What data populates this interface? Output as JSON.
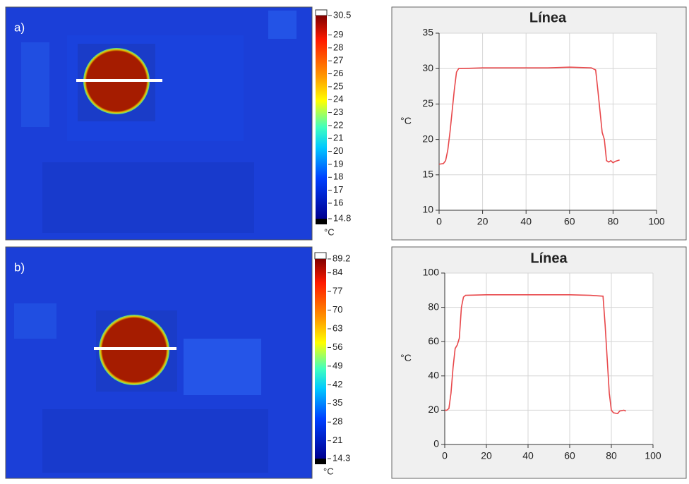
{
  "images": [
    {
      "label": "a)",
      "colorbar": {
        "lim": [
          14.8,
          30.5
        ],
        "ticks": [
          30.5,
          29,
          28,
          27,
          26,
          25,
          24,
          23,
          22,
          21,
          20,
          19,
          18,
          17,
          16,
          14.8
        ],
        "unit": "°C"
      }
    },
    {
      "label": "b)",
      "colorbar": {
        "lim": [
          14.3,
          89.2
        ],
        "ticks": [
          89.2,
          84,
          77,
          70,
          63,
          56,
          49,
          42,
          35,
          28,
          21,
          14.3
        ],
        "unit": "°C"
      }
    }
  ],
  "chart_data": [
    {
      "type": "line",
      "title": "Línea",
      "y_label": "°C",
      "color": "#e8474a",
      "grid": true,
      "x": [
        0,
        2,
        3,
        4,
        5,
        6,
        7,
        8,
        9,
        10,
        20,
        30,
        40,
        50,
        60,
        70,
        72,
        73,
        74,
        75,
        76,
        77,
        78,
        79,
        80,
        81,
        82,
        83
      ],
      "values": [
        16.5,
        16.6,
        17,
        18.5,
        21,
        24,
        27,
        29.5,
        30,
        30,
        30.1,
        30.1,
        30.1,
        30.1,
        30.2,
        30.1,
        29.8,
        27,
        24,
        21,
        20,
        17,
        16.8,
        17,
        16.7,
        16.9,
        17,
        17.1
      ],
      "xlim": [
        0,
        100
      ],
      "xticks": [
        0,
        20,
        40,
        60,
        80,
        100
      ],
      "ylim": [
        10,
        35
      ],
      "yticks": [
        10,
        15,
        20,
        25,
        30,
        35
      ]
    },
    {
      "type": "line",
      "title": "Línea",
      "y_label": "°C",
      "color": "#e8474a",
      "grid": true,
      "x": [
        0,
        1,
        2,
        3,
        4,
        5,
        6,
        7,
        8,
        9,
        10,
        20,
        40,
        60,
        70,
        76,
        77,
        78,
        79,
        80,
        81,
        83,
        84,
        86,
        87
      ],
      "values": [
        20,
        20,
        21,
        30,
        45,
        56,
        58,
        62,
        80,
        86,
        87,
        87.3,
        87.3,
        87.3,
        87,
        86.5,
        70,
        50,
        30,
        20,
        18.5,
        18,
        19.5,
        20,
        19.5
      ],
      "xlim": [
        0,
        100
      ],
      "xticks": [
        0,
        20,
        40,
        60,
        80,
        100
      ],
      "ylim": [
        0,
        100
      ],
      "yticks": [
        0,
        20,
        40,
        60,
        80,
        100
      ]
    }
  ]
}
